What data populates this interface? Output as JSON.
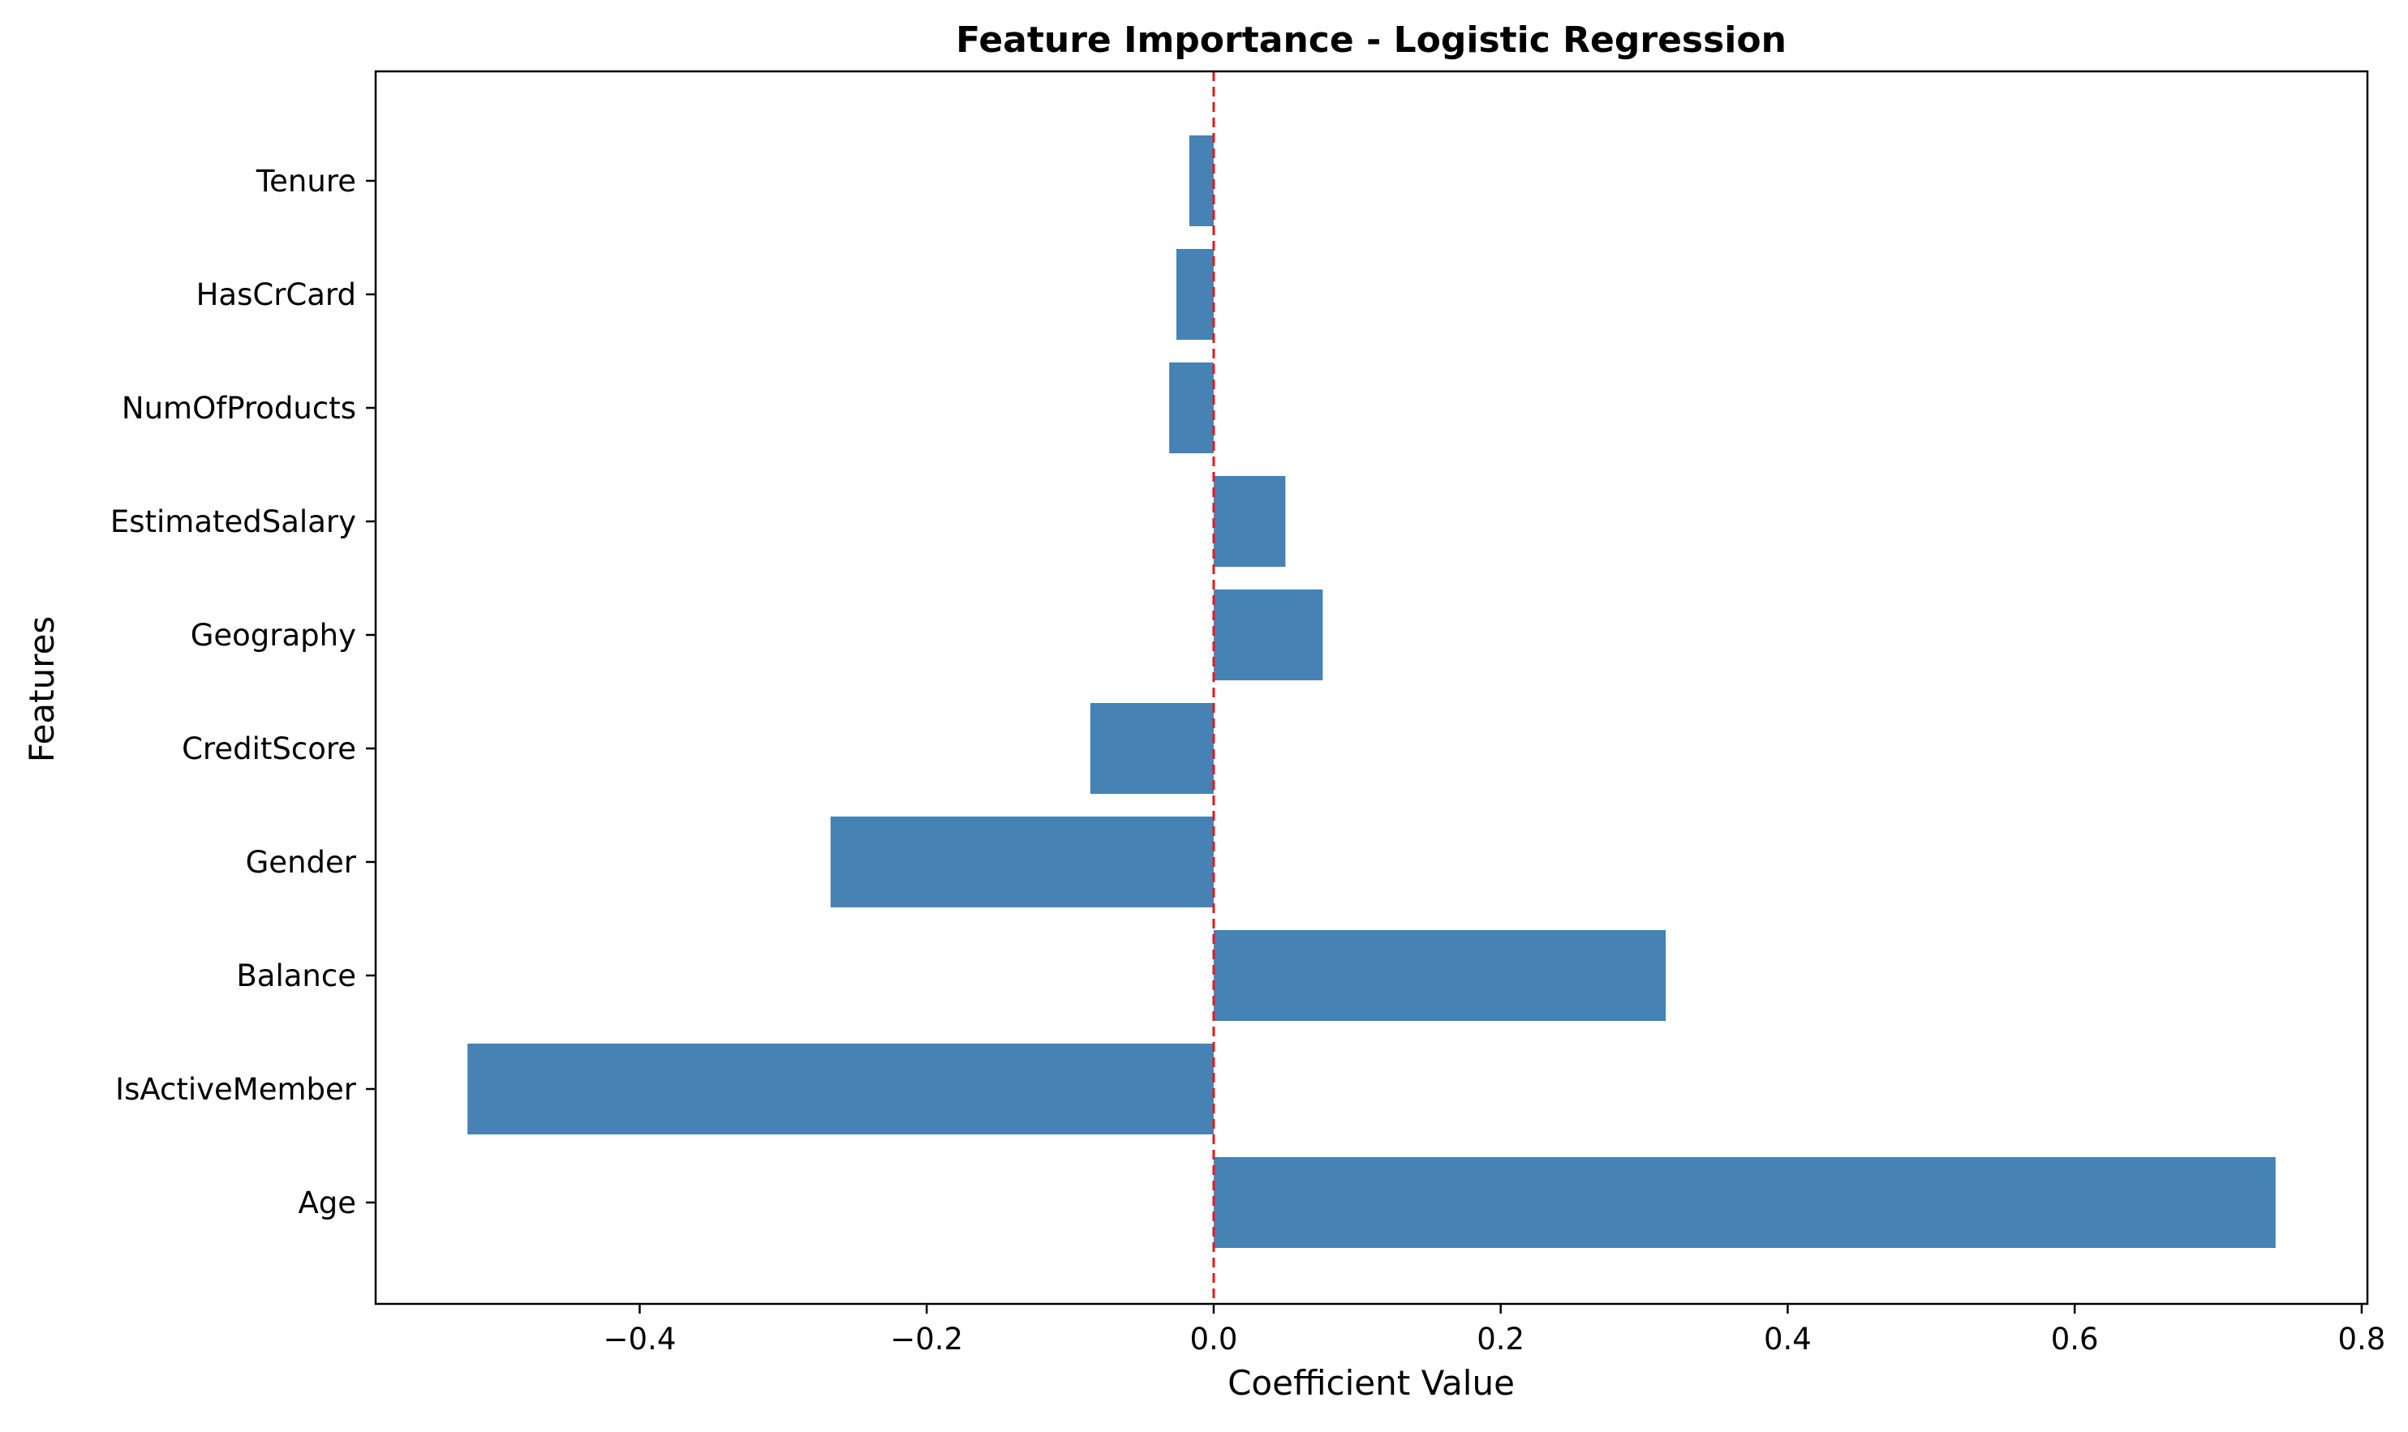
{
  "chart_data": {
    "type": "bar",
    "orientation": "horizontal",
    "title": "Feature Importance - Logistic Regression",
    "xlabel": "Coefficient Value",
    "ylabel": "Features",
    "categories": [
      "Age",
      "IsActiveMember",
      "Balance",
      "Gender",
      "CreditScore",
      "Geography",
      "EstimatedSalary",
      "NumOfProducts",
      "HasCrCard",
      "Tenure"
    ],
    "values": [
      0.74,
      -0.52,
      0.315,
      -0.267,
      -0.086,
      0.076,
      0.05,
      -0.031,
      -0.026,
      -0.017
    ],
    "xlim": [
      -0.584,
      0.804
    ],
    "xticks": [
      -0.4,
      -0.2,
      0.0,
      0.2,
      0.4,
      0.6,
      0.8
    ],
    "xtick_labels": [
      "−0.4",
      "−0.2",
      "0.0",
      "0.2",
      "0.4",
      "0.6",
      "0.8"
    ],
    "reference_line": {
      "x": 0,
      "style": "dashed",
      "color": "#e41a1c"
    },
    "bar_color": "#4682b4",
    "grid": false,
    "legend": "none"
  }
}
